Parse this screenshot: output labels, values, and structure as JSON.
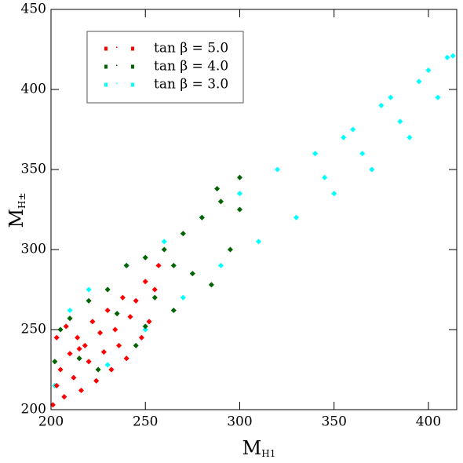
{
  "chart_data": {
    "type": "scatter",
    "xlabel": {
      "main": "M",
      "sub": "H1"
    },
    "ylabel": {
      "main": "M",
      "sub": "H±"
    },
    "xlim": [
      200,
      415
    ],
    "ylim": [
      200,
      450
    ],
    "xticks": [
      200,
      250,
      300,
      350,
      400
    ],
    "yticks": [
      200,
      250,
      300,
      350,
      400,
      450
    ],
    "grid": false,
    "legend": "upper left",
    "series": [
      {
        "name": "tan β = 5.0",
        "color": "#ff0000",
        "x": [
          201,
          203,
          205,
          207,
          210,
          212,
          214,
          216,
          218,
          220,
          222,
          224,
          226,
          228,
          230,
          232,
          234,
          236,
          238,
          240,
          242,
          245,
          248,
          250,
          252,
          255,
          257,
          203,
          208,
          215
        ],
        "values": [
          203,
          215,
          225,
          208,
          235,
          220,
          245,
          212,
          240,
          230,
          255,
          218,
          248,
          236,
          262,
          225,
          250,
          240,
          270,
          232,
          258,
          268,
          245,
          280,
          255,
          275,
          290,
          245,
          252,
          238
        ]
      },
      {
        "name": "tan β = 4.0",
        "color": "#006400",
        "x": [
          202,
          205,
          210,
          215,
          220,
          225,
          230,
          235,
          240,
          245,
          250,
          255,
          260,
          265,
          270,
          275,
          280,
          285,
          290,
          295,
          300,
          300,
          288,
          265,
          250
        ],
        "values": [
          230,
          250,
          257,
          232,
          268,
          225,
          275,
          260,
          290,
          240,
          295,
          270,
          300,
          262,
          310,
          285,
          320,
          278,
          330,
          300,
          325,
          345,
          338,
          290,
          252
        ]
      },
      {
        "name": "tan β = 3.0",
        "color": "#00ffff",
        "x": [
          202,
          210,
          220,
          230,
          240,
          250,
          260,
          270,
          280,
          290,
          300,
          310,
          320,
          330,
          340,
          350,
          360,
          370,
          380,
          390,
          400,
          405,
          410,
          413,
          395,
          385,
          375,
          365,
          355,
          345
        ],
        "values": [
          215,
          262,
          275,
          228,
          290,
          250,
          305,
          270,
          320,
          290,
          335,
          305,
          350,
          320,
          360,
          335,
          375,
          350,
          395,
          370,
          412,
          395,
          420,
          421,
          405,
          380,
          390,
          360,
          370,
          345
        ]
      }
    ]
  }
}
